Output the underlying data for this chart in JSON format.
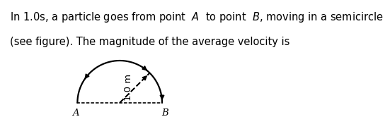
{
  "text_line1": "In 1.0s, a particle goes from point  $\\mathit{A}$  to point  $\\mathit{B}$, moving in a semicircle",
  "text_line2": "(see figure). The magnitude of the average velocity is",
  "label_A": "A",
  "label_B": "B",
  "radius_label": "1.0 m",
  "background_color": "#ffffff",
  "line_color": "#000000",
  "text_fontsize": 10.5,
  "label_fontsize": 9.5
}
